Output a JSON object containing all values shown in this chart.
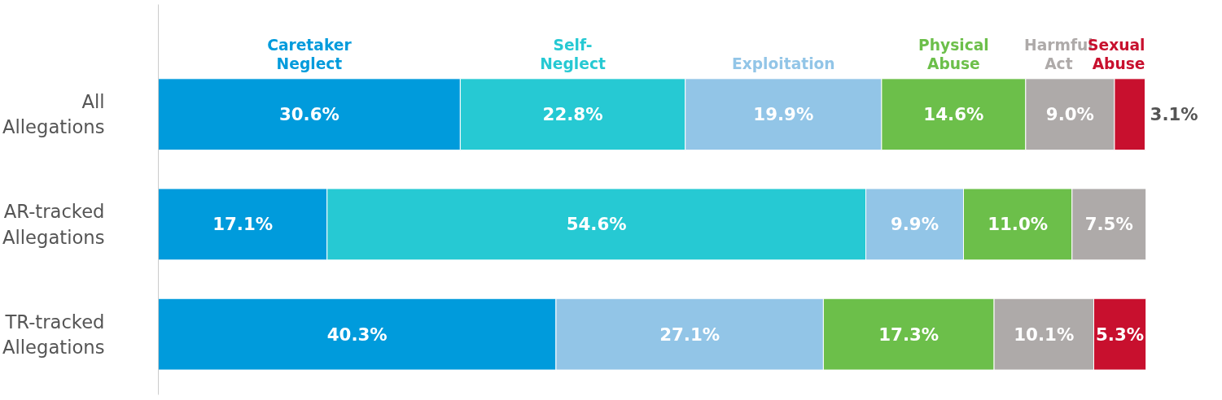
{
  "chart_data": {
    "type": "bar",
    "orientation": "horizontal",
    "stacked": true,
    "categories": [
      "All Allegations",
      "AR-tracked Allegations",
      "TR-tracked Allegations"
    ],
    "series": [
      {
        "name": "Caretaker Neglect",
        "color": "#009bdc",
        "values": [
          30.6,
          17.1,
          40.3
        ],
        "value_labels": [
          "30.6%",
          "17.1%",
          "40.3%"
        ]
      },
      {
        "name": "Self-Neglect",
        "color": "#26c9d3",
        "values": [
          22.8,
          54.6,
          null
        ],
        "value_labels": [
          "22.8%",
          "54.6%",
          null
        ]
      },
      {
        "name": "Exploitation",
        "color": "#92c5e7",
        "values": [
          19.9,
          9.9,
          27.1
        ],
        "value_labels": [
          "19.9%",
          "9.9%",
          "27.1%"
        ]
      },
      {
        "name": "Physical Abuse",
        "color": "#6cbf4a",
        "values": [
          14.6,
          11.0,
          17.3
        ],
        "value_labels": [
          "14.6%",
          "11.0%",
          "17.3%"
        ]
      },
      {
        "name": "Harmful Act",
        "color": "#aeaaa9",
        "values": [
          9.0,
          7.5,
          10.1
        ],
        "value_labels": [
          "9.0%",
          "7.5%",
          "10.1%"
        ]
      },
      {
        "name": "Sexual Abuse",
        "color": "#c8102e",
        "values": [
          3.1,
          null,
          5.3
        ],
        "value_labels": [
          "3.1%",
          null,
          "5.3%"
        ]
      }
    ],
    "legend": "top",
    "grid": false,
    "tick_labels": "y"
  }
}
